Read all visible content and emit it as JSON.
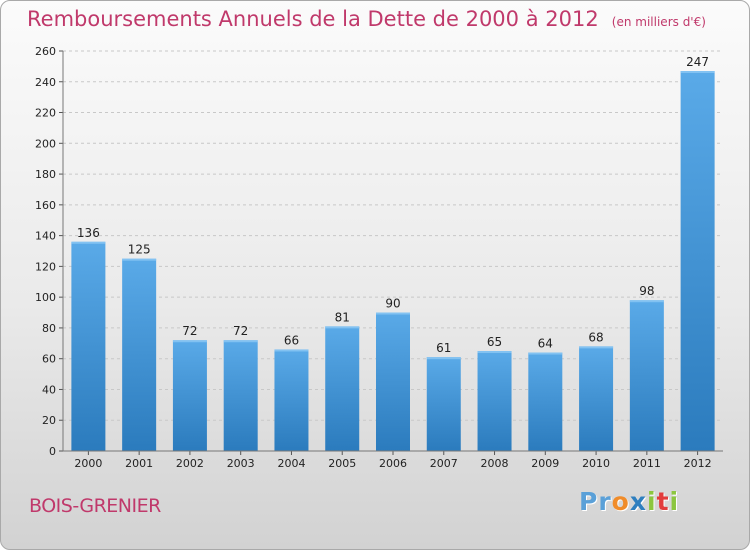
{
  "title": "Remboursements Annuels de la Dette de 2000 à 2012",
  "unit": "(en milliers d'€)",
  "city": "BOIS-GRENIER",
  "brand": {
    "name": "Proxiti",
    "letters": [
      {
        "char": "P",
        "color": "#5aa0d8"
      },
      {
        "char": "r",
        "color": "#5aa0d8"
      },
      {
        "char": "o",
        "color": "#f08c2a"
      },
      {
        "char": "x",
        "color": "#2f7fbf"
      },
      {
        "char": "i",
        "color": "#8cc63f"
      },
      {
        "char": "t",
        "color": "#e23c3c"
      },
      {
        "char": "i",
        "color": "#8cc63f"
      }
    ]
  },
  "colors": {
    "title": "#c0396b",
    "bar_top": "#5aaae8",
    "bar_bottom": "#2b7bbd",
    "grid": "#c8c8c8",
    "axis_text": "#222222"
  },
  "chart_data": {
    "type": "bar",
    "categories": [
      "2000",
      "2001",
      "2002",
      "2003",
      "2004",
      "2005",
      "2006",
      "2007",
      "2008",
      "2009",
      "2010",
      "2011",
      "2012"
    ],
    "values": [
      136,
      125,
      72,
      72,
      66,
      81,
      90,
      61,
      65,
      64,
      68,
      98,
      247
    ],
    "ylim": [
      0,
      260
    ],
    "yticks": [
      0,
      20,
      40,
      60,
      80,
      100,
      120,
      140,
      160,
      180,
      200,
      220,
      240,
      260
    ],
    "grid": true,
    "legend": "none"
  }
}
